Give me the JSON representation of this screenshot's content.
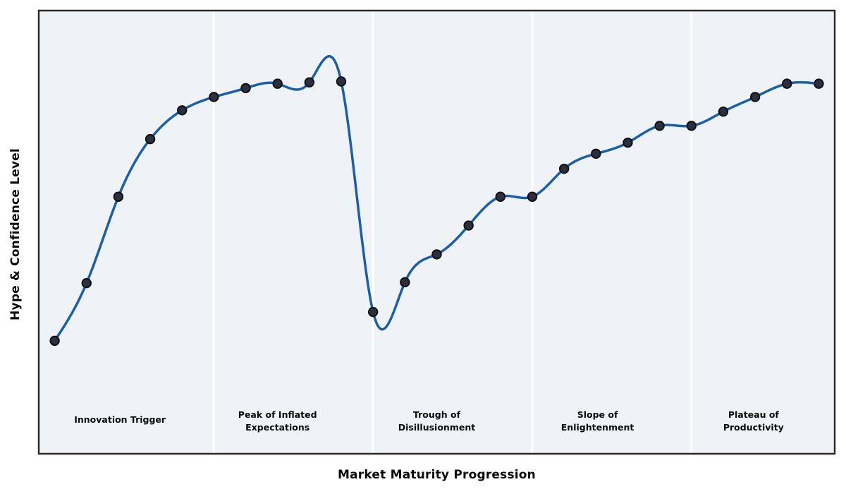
{
  "chart_data": {
    "type": "line",
    "title": "",
    "xlabel": "Market Maturity Progression",
    "ylabel": "Hype & Confidence Level",
    "x": [
      0,
      1,
      2,
      3,
      4,
      5,
      6,
      7,
      8,
      9,
      10,
      11,
      12,
      13,
      14,
      15,
      16,
      17,
      18,
      19,
      20,
      21,
      22,
      23,
      24
    ],
    "series": [
      {
        "name": "Hype & Confidence Level",
        "values": [
          25.5,
          38.5,
          58,
          71,
          77.5,
          80.5,
          82.5,
          83.5,
          83.8,
          84,
          32,
          38.7,
          45,
          51.5,
          58,
          58,
          64.3,
          67.7,
          70.2,
          74,
          74,
          77.2,
          80.5,
          83.5,
          83.5
        ]
      }
    ],
    "xlim": [
      -0.5,
      24.5
    ],
    "ylim": [
      0,
      100
    ],
    "grid": false,
    "legend": "none",
    "smoothing": "cubic-spline",
    "markers": true,
    "x_tick_labels": [],
    "y_tick_labels": [],
    "phase_divider_x": [
      5,
      10,
      15,
      20
    ],
    "phases": [
      {
        "label": "Innovation Trigger",
        "lines": [
          "Innovation Trigger"
        ],
        "label_x": 2.05
      },
      {
        "label": "Peak of Inflated Expectations",
        "lines": [
          "Peak of Inflated",
          "Expectations"
        ],
        "label_x": 7.0
      },
      {
        "label": "Trough of Disillusionment",
        "lines": [
          "Trough of",
          "Disillusionment"
        ],
        "label_x": 12.0
      },
      {
        "label": "Slope of Enlightenment",
        "lines": [
          "Slope of",
          "Enlightenment"
        ],
        "label_x": 17.05
      },
      {
        "label": "Plateau of Productivity",
        "lines": [
          "Plateau of",
          "Productivity"
        ],
        "label_x": 21.95
      }
    ]
  },
  "colors": {
    "figure_background": "#ffffff",
    "plot_background": "#eff3f8",
    "phase_divider": "#ffffff",
    "plot_border": "#2b2b2b",
    "curve": "#1b5fa8",
    "marker_fill": "#2b303c",
    "marker_edge": "#0e1116",
    "label_text": "#0a0a0a"
  }
}
